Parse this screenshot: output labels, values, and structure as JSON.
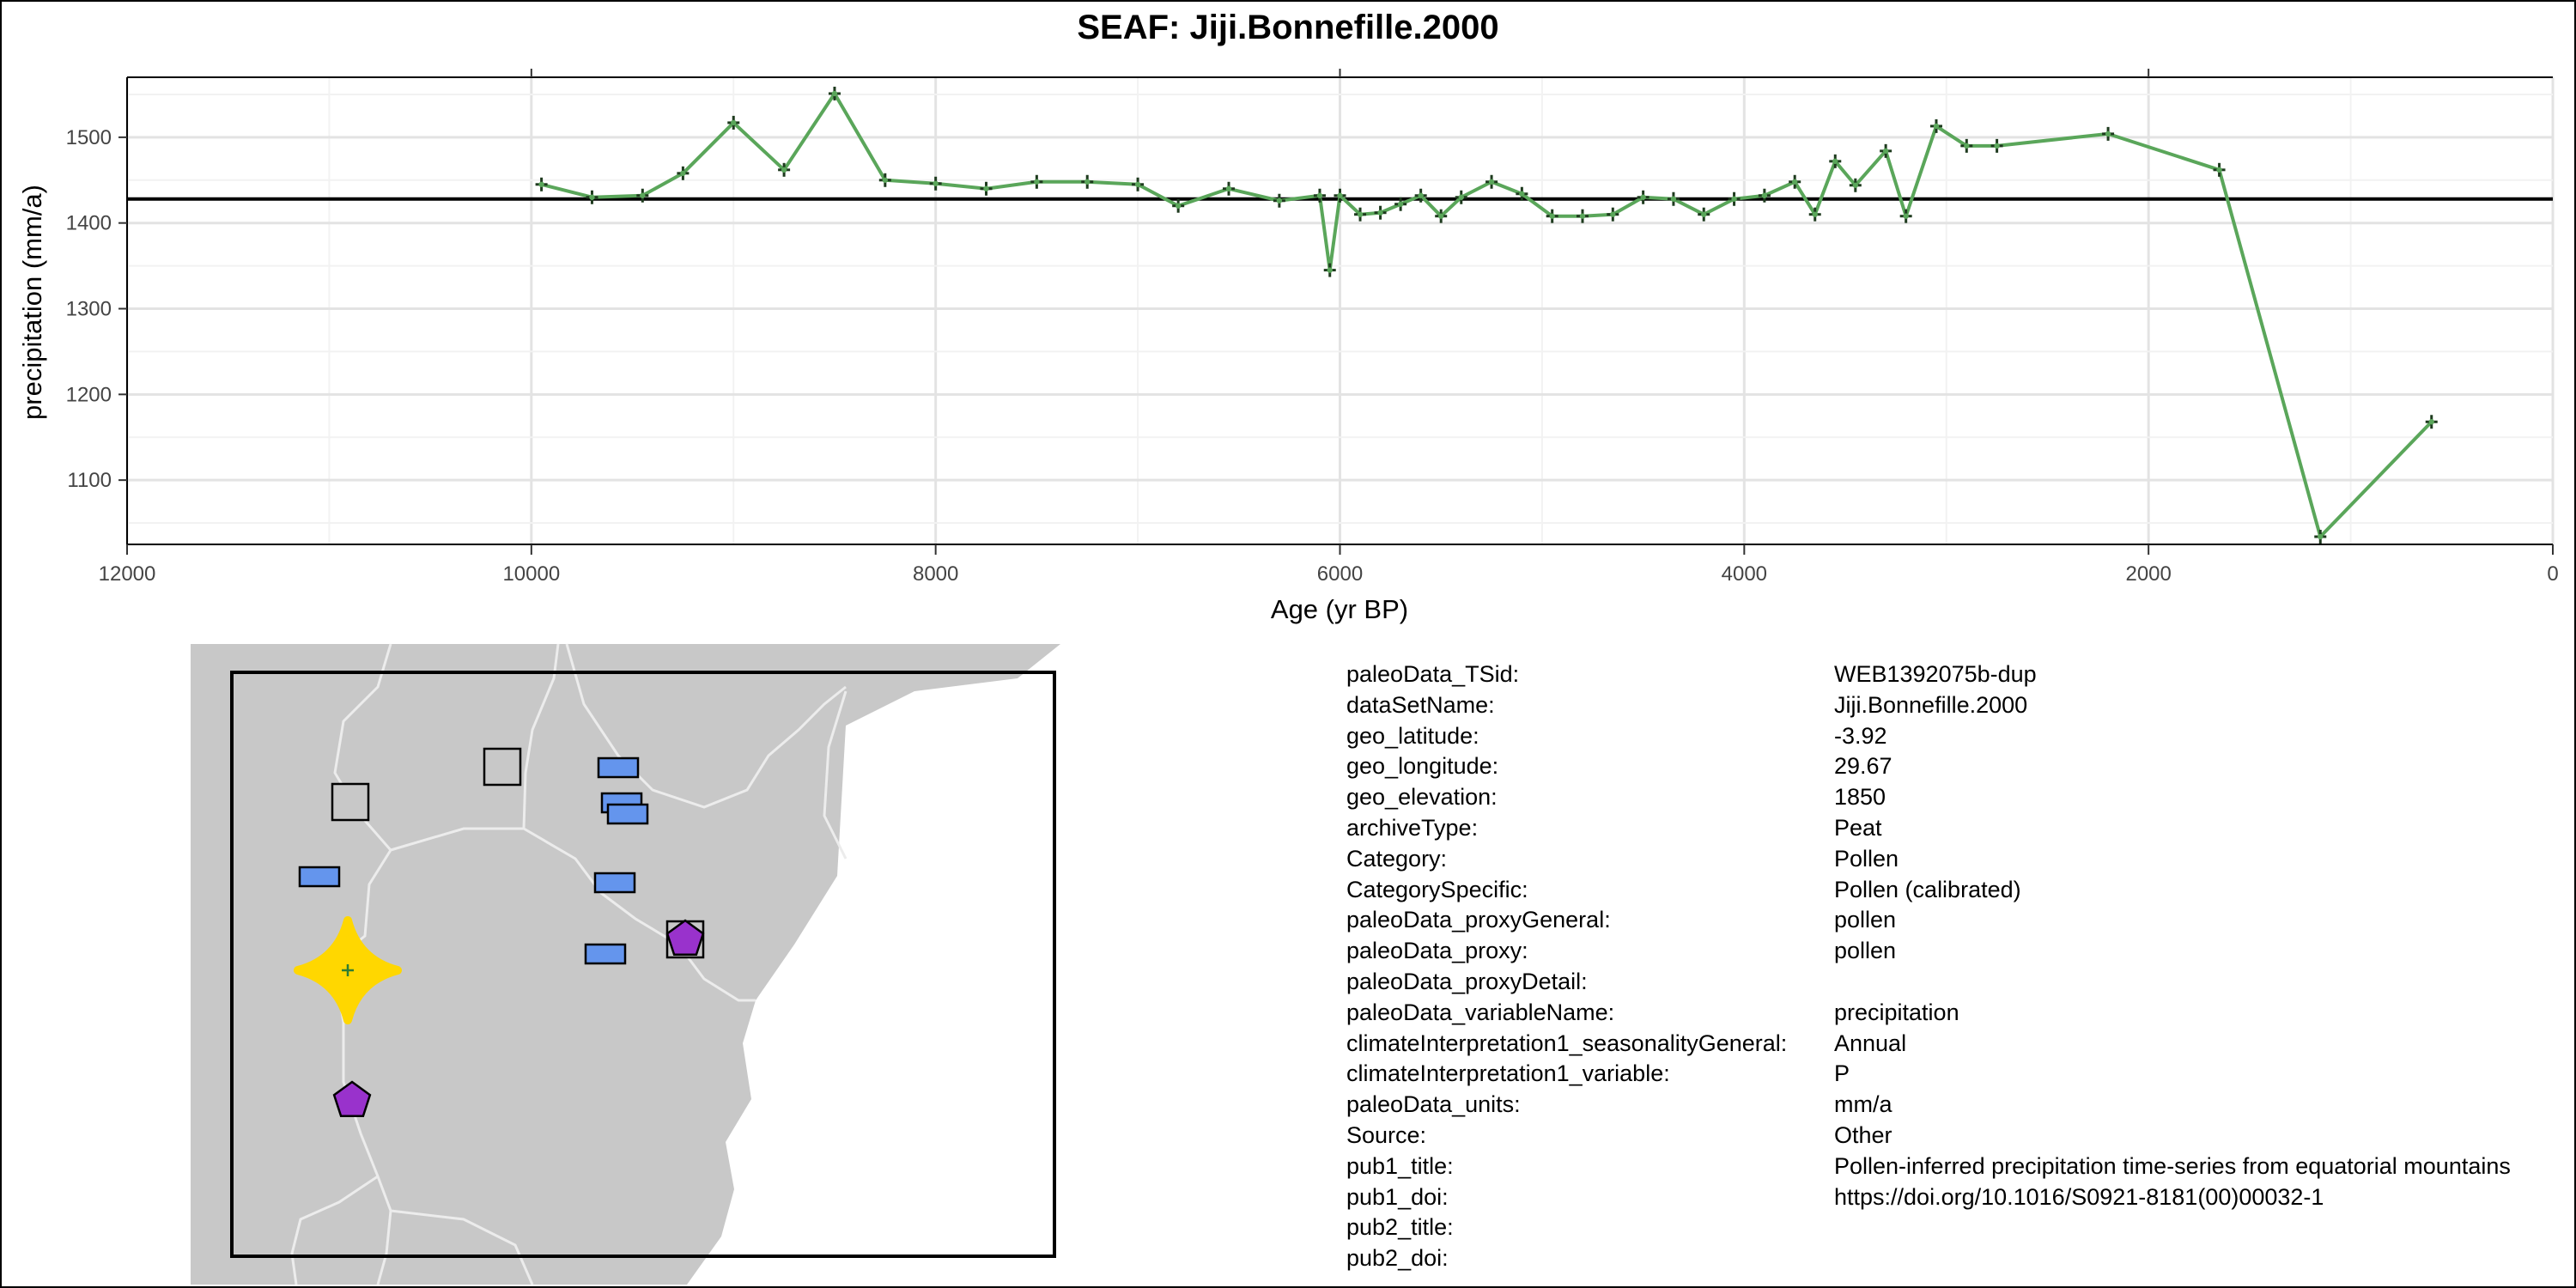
{
  "chart_data": {
    "type": "line",
    "title": "SEAF: Jiji.Bonnefille.2000",
    "xlabel": "Age (yr BP)",
    "ylabel": "precipitation (mm/a)",
    "xlim": [
      12000,
      0
    ],
    "ylim": [
      1025,
      1570
    ],
    "x_reversed": true,
    "x_ticks": [
      12000,
      10000,
      8000,
      6000,
      4000,
      2000,
      0
    ],
    "y_ticks": [
      1100,
      1200,
      1300,
      1400,
      1500
    ],
    "grid": true,
    "reference_line": 1428,
    "series": [
      {
        "color": "#5aa65a",
        "x": [
          9950,
          9700,
          9450,
          9250,
          9000,
          8750,
          8500,
          8250,
          8000,
          7750,
          7500,
          7250,
          7000,
          6800,
          6550,
          6300,
          6100,
          6050,
          6000,
          5900,
          5800,
          5700,
          5600,
          5500,
          5400,
          5250,
          5100,
          4950,
          4800,
          4650,
          4500,
          4350,
          4200,
          4050,
          3900,
          3750,
          3650,
          3550,
          3450,
          3300,
          3200,
          3050,
          2900,
          2750,
          2200,
          1650,
          1150,
          600
        ],
        "y": [
          1445,
          1430,
          1432,
          1458,
          1517,
          1462,
          1551,
          1450,
          1446,
          1440,
          1448,
          1448,
          1445,
          1420,
          1440,
          1426,
          1432,
          1345,
          1432,
          1410,
          1412,
          1422,
          1432,
          1408,
          1430,
          1448,
          1434,
          1408,
          1408,
          1410,
          1430,
          1428,
          1410,
          1428,
          1432,
          1448,
          1410,
          1472,
          1444,
          1484,
          1408,
          1513,
          1490,
          1490,
          1504,
          1462,
          1034,
          1168
        ]
      }
    ]
  },
  "map": {
    "site_colors": {
      "target": "#ffd700",
      "pollen": "#6495ed",
      "other": "#c8c8c8",
      "pentagon": "#9932cc"
    },
    "sites": [
      {
        "shape": "square",
        "kind": "other"
      },
      {
        "shape": "square",
        "kind": "other"
      },
      {
        "shape": "rect",
        "kind": "pollen"
      },
      {
        "shape": "rect",
        "kind": "pollen"
      },
      {
        "shape": "rect",
        "kind": "pollen"
      },
      {
        "shape": "rect",
        "kind": "pollen"
      },
      {
        "shape": "rect",
        "kind": "pollen"
      },
      {
        "shape": "rect",
        "kind": "pollen"
      },
      {
        "shape": "square-pentagon",
        "kind": "pentagon"
      },
      {
        "shape": "pentagon",
        "kind": "pentagon"
      },
      {
        "shape": "star",
        "kind": "target"
      }
    ]
  },
  "metadata": [
    {
      "key": "paleoData_TSid:",
      "value": "WEB1392075b-dup"
    },
    {
      "key": "dataSetName:",
      "value": "Jiji.Bonnefille.2000"
    },
    {
      "key": "geo_latitude:",
      "value": "-3.92"
    },
    {
      "key": "geo_longitude:",
      "value": "29.67"
    },
    {
      "key": "geo_elevation:",
      "value": "1850"
    },
    {
      "key": "archiveType:",
      "value": "Peat"
    },
    {
      "key": "Category:",
      "value": "Pollen"
    },
    {
      "key": "CategorySpecific:",
      "value": "Pollen (calibrated)"
    },
    {
      "key": "paleoData_proxyGeneral:",
      "value": "pollen"
    },
    {
      "key": "paleoData_proxy:",
      "value": "pollen"
    },
    {
      "key": "paleoData_proxyDetail:",
      "value": ""
    },
    {
      "key": "paleoData_variableName:",
      "value": "precipitation"
    },
    {
      "key": "climateInterpretation1_seasonalityGeneral:",
      "value": "Annual"
    },
    {
      "key": "climateInterpretation1_variable:",
      "value": "P"
    },
    {
      "key": "paleoData_units:",
      "value": "mm/a"
    },
    {
      "key": "Source:",
      "value": "Other"
    },
    {
      "key": "pub1_title:",
      "value": "Pollen-inferred precipitation time-series from equatorial mountains"
    },
    {
      "key": "pub1_doi:",
      "value": "https://doi.org/10.1016/S0921-8181(00)00032-1"
    },
    {
      "key": "pub2_title:",
      "value": ""
    },
    {
      "key": "pub2_doi:",
      "value": ""
    }
  ]
}
